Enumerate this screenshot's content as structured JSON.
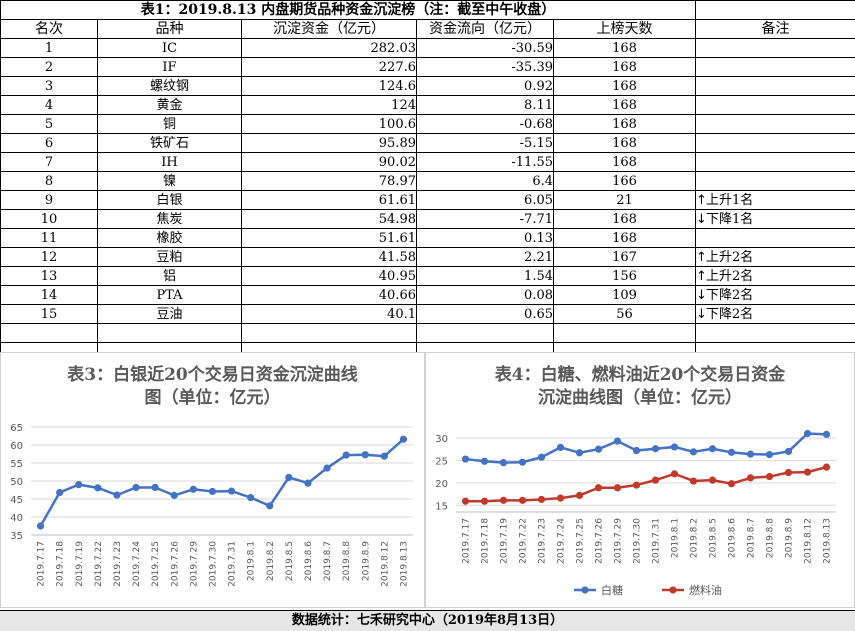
{
  "table": {
    "title": "表1：2019.8.13 内盘期货品种资金沉淀榜（注：截至中午收盘）",
    "headers": [
      "名次",
      "品种",
      "沉淀资金（亿元）",
      "资金流向（亿元）",
      "上榜天数",
      "备注"
    ],
    "rows": [
      {
        "rank": "1",
        "name": "IC",
        "capital": "282.03",
        "flow": "-30.59",
        "days": "168",
        "note": ""
      },
      {
        "rank": "2",
        "name": "IF",
        "capital": "227.6",
        "flow": "-35.39",
        "days": "168",
        "note": ""
      },
      {
        "rank": "3",
        "name": "螺纹钢",
        "capital": "124.6",
        "flow": "0.92",
        "days": "168",
        "note": ""
      },
      {
        "rank": "4",
        "name": "黄金",
        "capital": "124",
        "flow": "8.11",
        "days": "168",
        "note": ""
      },
      {
        "rank": "5",
        "name": "铜",
        "capital": "100.6",
        "flow": "-0.68",
        "days": "168",
        "note": ""
      },
      {
        "rank": "6",
        "name": "铁矿石",
        "capital": "95.89",
        "flow": "-5.15",
        "days": "168",
        "note": ""
      },
      {
        "rank": "7",
        "name": "IH",
        "capital": "90.02",
        "flow": "-11.55",
        "days": "168",
        "note": ""
      },
      {
        "rank": "8",
        "name": "镍",
        "capital": "78.97",
        "flow": "6.4",
        "days": "166",
        "note": ""
      },
      {
        "rank": "9",
        "name": "白银",
        "capital": "61.61",
        "flow": "6.05",
        "days": "21",
        "note": "上升1名",
        "arrow": "up"
      },
      {
        "rank": "10",
        "name": "焦炭",
        "capital": "54.98",
        "flow": "-7.71",
        "days": "168",
        "note": "下降1名",
        "arrow": "down"
      },
      {
        "rank": "11",
        "name": "橡胶",
        "capital": "51.61",
        "flow": "0.13",
        "days": "168",
        "note": ""
      },
      {
        "rank": "12",
        "name": "豆粕",
        "capital": "41.58",
        "flow": "2.21",
        "days": "167",
        "note": "上升2名",
        "arrow": "up"
      },
      {
        "rank": "13",
        "name": "铝",
        "capital": "40.95",
        "flow": "1.54",
        "days": "156",
        "note": "上升2名",
        "arrow": "up"
      },
      {
        "rank": "14",
        "name": "PTA",
        "capital": "40.66",
        "flow": "0.08",
        "days": "109",
        "note": "下降2名",
        "arrow": "down"
      },
      {
        "rank": "15",
        "name": "豆油",
        "capital": "40.1",
        "flow": "0.65",
        "days": "56",
        "note": "下降2名",
        "arrow": "down"
      }
    ]
  },
  "chart_data": [
    {
      "type": "line",
      "title_line1": "表3：白银近20个交易日资金沉淀曲线",
      "title_line2": "图（单位：亿元）",
      "x": [
        "2019.7.17",
        "2019.7.18",
        "2019.7.19",
        "2019.7.22",
        "2019.7.23",
        "2019.7.24",
        "2019.7.25",
        "2019.7.26",
        "2019.7.29",
        "2019.7.30",
        "2019.7.31",
        "2019.8.1",
        "2019.8.2",
        "2019.8.5",
        "2019.8.6",
        "2019.8.7",
        "2019.8.8",
        "2019.8.9",
        "2019.8.12",
        "2019.8.13"
      ],
      "series": [
        {
          "values": [
            37.5,
            46.8,
            49.0,
            48.1,
            46.1,
            48.2,
            48.2,
            46.0,
            47.7,
            47.1,
            47.2,
            45.4,
            43.1,
            51.0,
            49.4,
            53.6,
            57.2,
            57.3,
            56.9,
            61.6
          ],
          "color": "#4472c4"
        }
      ],
      "yticks": [
        "35",
        "40",
        "45",
        "50",
        "55",
        "60",
        "65"
      ],
      "ylim": [
        35,
        65
      ],
      "grid": true,
      "legend": "none"
    },
    {
      "type": "line",
      "title_line1": "表4：白糖、燃料油近20个交易日资金",
      "title_line2": "沉淀曲线图（单位：亿元）",
      "x": [
        "2019.7.17",
        "2019.7.18",
        "2019.7.19",
        "2019.7.22",
        "2019.7.23",
        "2019.7.24",
        "2019.7.25",
        "2019.7.26",
        "2019.7.29",
        "2019.7.30",
        "2019.7.31",
        "2019.8.1",
        "2019.8.2",
        "2019.8.5",
        "2019.8.6",
        "2019.8.7",
        "2019.8.8",
        "2019.8.9",
        "2019.8.12",
        "2019.8.13"
      ],
      "series": [
        {
          "name": "白糖",
          "values": [
            25.3,
            24.8,
            24.5,
            24.6,
            25.7,
            27.9,
            26.7,
            27.5,
            29.3,
            27.2,
            27.6,
            28.0,
            26.9,
            27.6,
            26.8,
            26.4,
            26.3,
            27.0,
            31.0,
            30.8
          ],
          "color": "#4472c4"
        },
        {
          "name": "燃料油",
          "values": [
            15.9,
            15.9,
            16.1,
            16.1,
            16.3,
            16.6,
            17.2,
            18.9,
            18.9,
            19.5,
            20.6,
            22.0,
            20.4,
            20.6,
            19.8,
            21.1,
            21.4,
            22.3,
            22.4,
            23.5
          ],
          "color": "#c0392b"
        }
      ],
      "yticks": [
        "15",
        "20",
        "25",
        "30"
      ],
      "ylim": [
        13.5,
        32
      ],
      "grid": true,
      "legend": "bottom"
    }
  ],
  "footer": "数据统计：七禾研究中心（2019年8月13日）"
}
